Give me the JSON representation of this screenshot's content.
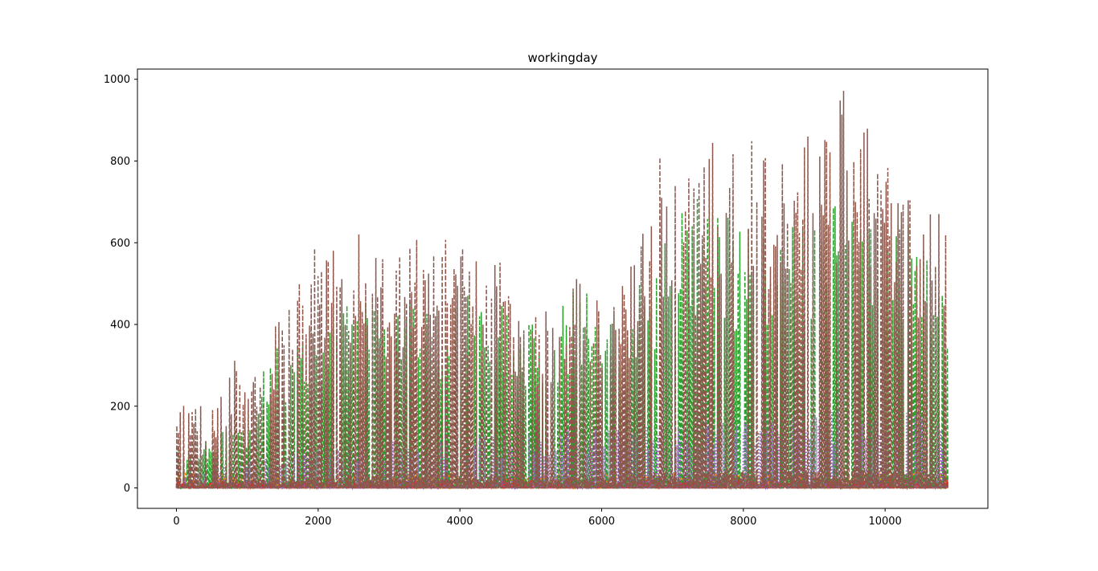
{
  "chart_data": {
    "type": "line",
    "title": "workingday",
    "xlabel": "",
    "ylabel": "",
    "xlim": [
      -550,
      11450
    ],
    "ylim": [
      -50,
      1025
    ],
    "xticks": [
      0,
      2000,
      4000,
      6000,
      8000,
      10000
    ],
    "yticks": [
      0,
      200,
      400,
      600,
      800,
      1000
    ],
    "grid": false,
    "legend": "none",
    "n_points": 10886,
    "series": [
      {
        "color": "#1f77b4",
        "linestyle": "dashed",
        "peak_profile": {
          "x": [
            0,
            10886
          ],
          "y": [
            12,
            12
          ]
        }
      },
      {
        "color": "#ff7f0e",
        "linestyle": "dashed",
        "peak_profile": {
          "x": [
            0,
            10886
          ],
          "y": [
            40,
            40
          ]
        }
      },
      {
        "color": "#2ca02c",
        "linestyle": "dashed",
        "peak_profile": {
          "x": [
            0,
            500,
            1000,
            1400,
            1800,
            2200,
            2700,
            3200,
            3700,
            4200,
            4700,
            5200,
            5600,
            6000,
            6500,
            7000,
            7200,
            7700,
            8200,
            8700,
            9200,
            9600,
            10000,
            10300,
            10600,
            10886
          ],
          "y": [
            110,
            130,
            180,
            370,
            380,
            480,
            470,
            480,
            480,
            500,
            440,
            430,
            510,
            450,
            520,
            700,
            720,
            700,
            650,
            650,
            700,
            740,
            690,
            720,
            560,
            470
          ]
        }
      },
      {
        "color": "#d62728",
        "linestyle": "dashed",
        "peak_profile": {
          "x": [
            0,
            10886
          ],
          "y": [
            20,
            20
          ]
        }
      },
      {
        "color": "#9467bd",
        "linestyle": "dotted",
        "peak_profile": {
          "x": [
            0,
            2000,
            6000,
            10000,
            10886
          ],
          "y": [
            40,
            100,
            150,
            200,
            160
          ]
        }
      },
      {
        "color": "#8c564b",
        "linestyle": "dashed",
        "peak_profile": {
          "x": [
            0,
            100,
            500,
            850,
            1000,
            1300,
            1500,
            1800,
            2000,
            2300,
            2600,
            2900,
            3200,
            3600,
            3900,
            4200,
            4500,
            4800,
            5000,
            5300,
            5600,
            5900,
            6200,
            6500,
            6700,
            6900,
            7100,
            7400,
            7600,
            7900,
            8200,
            8500,
            8800,
            9000,
            9300,
            9400,
            9600,
            9800,
            10000,
            10300,
            10500,
            10700,
            10886
          ],
          "y": [
            150,
            220,
            195,
            330,
            250,
            360,
            450,
            540,
            610,
            580,
            640,
            580,
            590,
            630,
            600,
            570,
            625,
            470,
            410,
            460,
            560,
            540,
            500,
            610,
            800,
            820,
            740,
            780,
            870,
            860,
            870,
            830,
            890,
            900,
            970,
            975,
            950,
            940,
            880,
            700,
            760,
            700,
            680
          ]
        }
      }
    ]
  }
}
